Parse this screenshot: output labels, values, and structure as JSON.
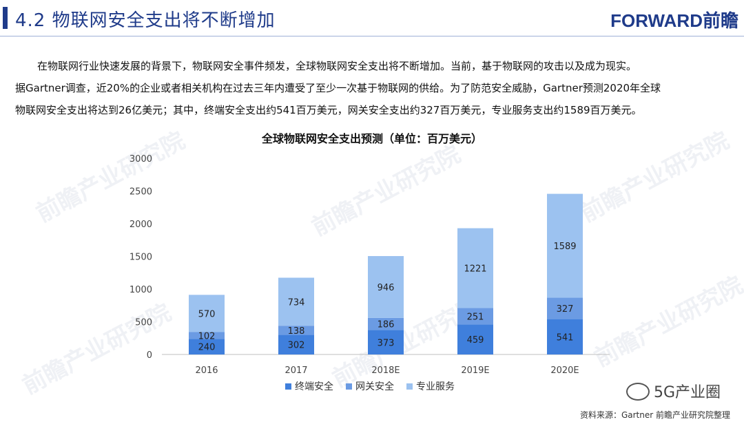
{
  "header": {
    "section_title": "4.2 物联网安全支出将不断增加",
    "logo_text": "FORWARD前瞻"
  },
  "paragraph": {
    "lines": [
      "在物联网行业快速发展的背景下，物联网安全事件频发，全球物联网安全支出将不断增加。当前，基于物联网的攻击以及成为现实。",
      "据Gartner调查，近20%的企业或者相关机构在过去三年内遭受了至少一次基于物联网的供给。为了防范安全威胁，Gartner预测2020年全球",
      "物联网安全支出将达到26亿美元；其中，终端安全支出约541百万美元，网关安全支出约327百万美元，专业服务支出约1589百万美元。"
    ]
  },
  "chart_data": {
    "type": "bar",
    "stacked": true,
    "title": "全球物联网安全支出预测（单位：百万美元）",
    "categories": [
      "2016",
      "2017",
      "2018E",
      "2019E",
      "2020E"
    ],
    "series": [
      {
        "name": "终端安全",
        "color": "#3f7fdc",
        "values": [
          240,
          302,
          373,
          459,
          541
        ]
      },
      {
        "name": "网关安全",
        "color": "#6b9be3",
        "values": [
          102,
          138,
          186,
          251,
          327
        ]
      },
      {
        "name": "专业服务",
        "color": "#9cc2f0",
        "values": [
          570,
          734,
          946,
          1221,
          1589
        ]
      }
    ],
    "ylim": [
      0,
      3000
    ],
    "yticks": [
      0,
      500,
      1000,
      1500,
      2000,
      2500,
      3000
    ],
    "legend_position": "bottom",
    "grid": false
  },
  "watermark_text": "前瞻产业研究院",
  "brand_tag": "5G产业圈",
  "source": "资料来源：Gartner  前瞻产业研究院整理"
}
